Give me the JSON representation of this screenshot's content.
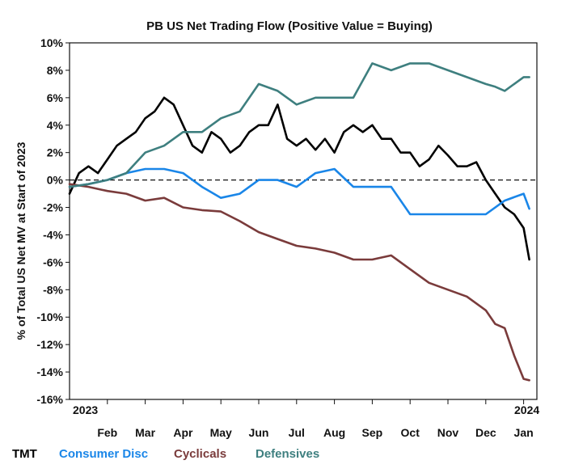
{
  "chart_data": {
    "type": "line",
    "title": "PB US Net Trading Flow (Positive Value = Buying)",
    "xlabel": "",
    "ylabel": "% of Total US Net MV at Start of 2023",
    "ylim": [
      -16,
      10
    ],
    "yticks": [
      10,
      8,
      6,
      4,
      2,
      0,
      -2,
      -4,
      -6,
      -8,
      -10,
      -12,
      -14,
      -16
    ],
    "ytick_labels": [
      "10%",
      "8%",
      "6%",
      "4%",
      "2%",
      "0%",
      "-2%",
      "-4%",
      "-6%",
      "-8%",
      "-10%",
      "-12%",
      "-14%",
      "-16%"
    ],
    "xlim": [
      0,
      12.2
    ],
    "xticks": [
      {
        "pos": 1,
        "label": "Feb"
      },
      {
        "pos": 2,
        "label": "Mar"
      },
      {
        "pos": 3,
        "label": "Apr"
      },
      {
        "pos": 4,
        "label": "May"
      },
      {
        "pos": 5,
        "label": "Jun"
      },
      {
        "pos": 6,
        "label": "Jul"
      },
      {
        "pos": 7,
        "label": "Aug"
      },
      {
        "pos": 8,
        "label": "Sep"
      },
      {
        "pos": 9,
        "label": "Oct"
      },
      {
        "pos": 10,
        "label": "Nov"
      },
      {
        "pos": 11,
        "label": "Dec"
      },
      {
        "pos": 12,
        "label": "Jan"
      }
    ],
    "corner_labels": {
      "start": "2023",
      "end": "2024"
    },
    "zero_line": "dashed",
    "series": [
      {
        "name": "TMT",
        "color": "#000000",
        "x": [
          0,
          0.25,
          0.5,
          0.75,
          1.0,
          1.25,
          1.5,
          1.75,
          2.0,
          2.25,
          2.5,
          2.75,
          3.0,
          3.25,
          3.5,
          3.75,
          4.0,
          4.25,
          4.5,
          4.75,
          5.0,
          5.25,
          5.5,
          5.75,
          6.0,
          6.25,
          6.5,
          6.75,
          7.0,
          7.25,
          7.5,
          7.75,
          8.0,
          8.25,
          8.5,
          8.75,
          9.0,
          9.25,
          9.5,
          9.75,
          10.0,
          10.25,
          10.5,
          10.75,
          11.0,
          11.25,
          11.5,
          11.75,
          12.0,
          12.15
        ],
        "values": [
          -1.0,
          0.5,
          1.0,
          0.5,
          1.5,
          2.5,
          3.0,
          3.5,
          4.5,
          5.0,
          6.0,
          5.5,
          4.0,
          2.5,
          2.0,
          3.5,
          3.0,
          2.0,
          2.5,
          3.5,
          4.0,
          4.0,
          5.5,
          3.0,
          2.5,
          3.0,
          2.2,
          3.0,
          2.0,
          3.5,
          4.0,
          3.5,
          4.0,
          3.0,
          3.0,
          2.0,
          2.0,
          1.0,
          1.5,
          2.5,
          1.8,
          1.0,
          1.0,
          1.3,
          0.0,
          -1.0,
          -2.0,
          -2.5,
          -3.5,
          -5.8
        ]
      },
      {
        "name": "Consumer Disc",
        "color": "#1a86e8",
        "x": [
          0,
          0.5,
          1.0,
          1.5,
          2.0,
          2.5,
          3.0,
          3.5,
          4.0,
          4.5,
          5.0,
          5.5,
          6.0,
          6.5,
          7.0,
          7.5,
          8.0,
          8.5,
          9.0,
          9.5,
          10.0,
          10.5,
          11.0,
          11.5,
          12.0,
          12.15
        ],
        "values": [
          -0.5,
          -0.3,
          0.0,
          0.5,
          0.8,
          0.8,
          0.5,
          -0.5,
          -1.3,
          -1.0,
          0.0,
          0.0,
          -0.5,
          0.5,
          0.8,
          -0.5,
          -0.5,
          -0.5,
          -2.5,
          -2.5,
          -2.5,
          -2.5,
          -2.5,
          -1.5,
          -1.0,
          -2.1
        ]
      },
      {
        "name": "Cyclicals",
        "color": "#7a3b3b",
        "x": [
          0,
          0.5,
          1.0,
          1.5,
          2.0,
          2.5,
          3.0,
          3.5,
          4.0,
          4.5,
          5.0,
          5.5,
          6.0,
          6.5,
          7.0,
          7.5,
          8.0,
          8.5,
          9.0,
          9.5,
          10.0,
          10.5,
          11.0,
          11.25,
          11.5,
          11.75,
          12.0,
          12.15
        ],
        "values": [
          -0.3,
          -0.5,
          -0.8,
          -1.0,
          -1.5,
          -1.3,
          -2.0,
          -2.2,
          -2.3,
          -3.0,
          -3.8,
          -4.3,
          -4.8,
          -5.0,
          -5.3,
          -5.8,
          -5.8,
          -5.5,
          -6.5,
          -7.5,
          -8.0,
          -8.5,
          -9.5,
          -10.5,
          -10.8,
          -12.8,
          -14.5,
          -14.6
        ]
      },
      {
        "name": "Defensives",
        "color": "#3e7f7f",
        "x": [
          0,
          0.5,
          1.0,
          1.5,
          2.0,
          2.5,
          3.0,
          3.5,
          4.0,
          4.5,
          5.0,
          5.5,
          6.0,
          6.5,
          7.0,
          7.5,
          8.0,
          8.5,
          9.0,
          9.5,
          10.0,
          10.5,
          11.0,
          11.25,
          11.5,
          11.75,
          12.0,
          12.15
        ],
        "values": [
          -0.5,
          -0.3,
          0.0,
          0.5,
          2.0,
          2.5,
          3.5,
          3.5,
          4.5,
          5.0,
          7.0,
          6.5,
          5.5,
          6.0,
          6.0,
          6.0,
          8.5,
          8.0,
          8.5,
          8.5,
          8.0,
          7.5,
          7.0,
          6.8,
          6.5,
          7.0,
          7.5,
          7.5
        ]
      }
    ]
  }
}
